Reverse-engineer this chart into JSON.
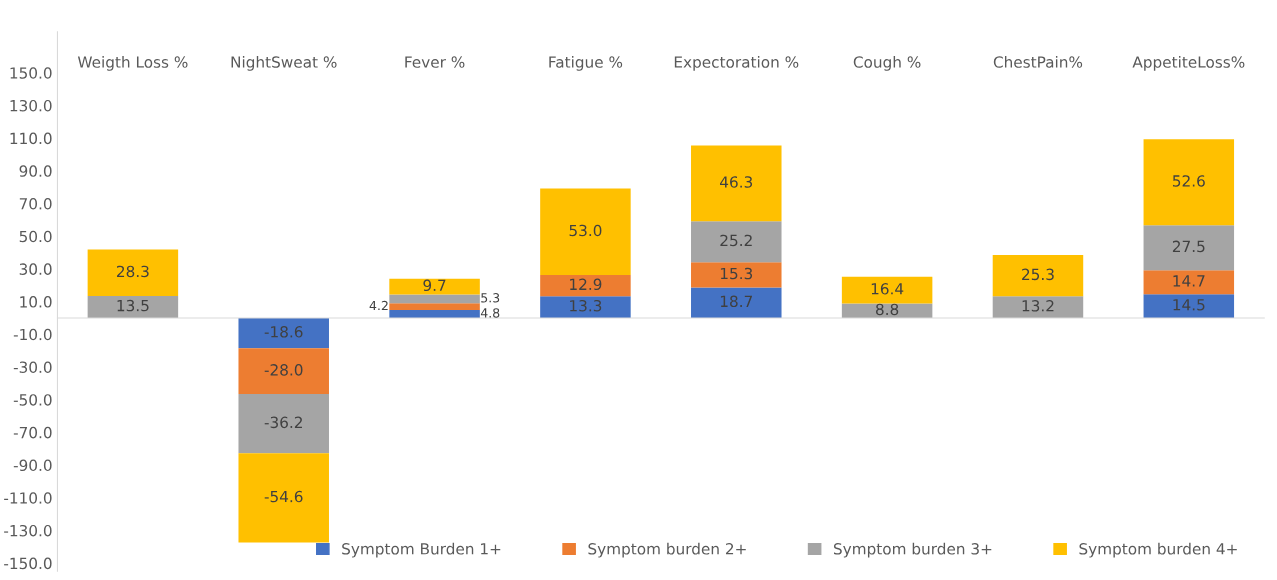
{
  "chart_data": {
    "type": "bar",
    "stacked": true,
    "categories": [
      "Weigth Loss %",
      "NightSweat %",
      "Fever %",
      "Fatigue %",
      "Expectoration %",
      "Cough %",
      "ChestPain%",
      "AppetiteLoss%"
    ],
    "series": [
      {
        "name": "Symptom Burden 1+",
        "color": "#4472c4",
        "values": [
          null,
          -18.6,
          4.8,
          13.3,
          18.7,
          null,
          null,
          14.5
        ],
        "value_labels": [
          null,
          "-18.6",
          "4.8",
          "13.3",
          "18.7",
          null,
          null,
          "14.5"
        ]
      },
      {
        "name": "Symptom burden 2+",
        "color": "#ed7d31",
        "values": [
          null,
          -28.0,
          4.2,
          12.9,
          15.3,
          null,
          null,
          14.7
        ],
        "value_labels": [
          null,
          "-28.0",
          "4.2",
          "12.9",
          "15.3",
          null,
          null,
          "14.7"
        ]
      },
      {
        "name": "Symptom burden 3+",
        "color": "#a5a5a5",
        "values": [
          13.5,
          -36.2,
          5.3,
          null,
          25.2,
          8.8,
          13.2,
          27.5
        ],
        "value_labels": [
          "13.5",
          "-36.2",
          "5.3",
          null,
          "25.2",
          "8.8",
          "13.2",
          "27.5"
        ]
      },
      {
        "name": "Symptom burden 4+",
        "color": "#ffc000",
        "values": [
          28.3,
          -54.6,
          9.7,
          53.0,
          46.3,
          16.4,
          25.3,
          52.6
        ],
        "value_labels": [
          "28.3",
          "-54.6",
          "9.7",
          "53.0",
          "46.3",
          "16.4",
          "25.3",
          "52.6"
        ]
      }
    ],
    "ylim": [
      -155,
      175
    ],
    "yticks": [
      {
        "value": 150,
        "label": "150.0"
      },
      {
        "value": 130,
        "label": "130.0"
      },
      {
        "value": 110,
        "label": "110.0"
      },
      {
        "value": 90,
        "label": "90.0"
      },
      {
        "value": 70,
        "label": "70.0"
      },
      {
        "value": 50,
        "label": "50.0"
      },
      {
        "value": 30,
        "label": "30.0"
      },
      {
        "value": 10,
        "label": "10.0"
      },
      {
        "value": -10,
        "label": "-10.0"
      },
      {
        "value": -30,
        "label": "-30.0"
      },
      {
        "value": -50,
        "label": "-50.0"
      },
      {
        "value": -70,
        "label": "-70.0"
      },
      {
        "value": -90,
        "label": "-90.0"
      },
      {
        "value": -110,
        "label": "-110.0"
      },
      {
        "value": -130,
        "label": "-130.0"
      },
      {
        "value": -150,
        "label": "-150.0"
      }
    ],
    "grid": false,
    "legend": "bottom right"
  }
}
